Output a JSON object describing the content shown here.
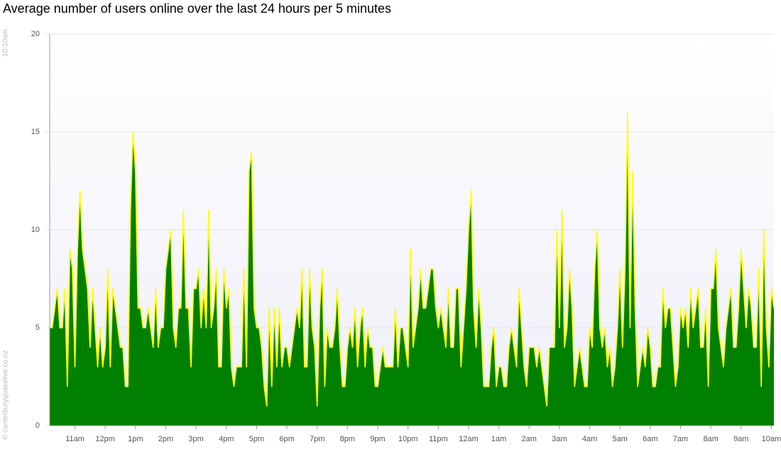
{
  "chart_data": {
    "type": "area",
    "title": "Average number of users online over the last 24 hours per 5 minutes",
    "start_label": "10:10am",
    "credit": "© canterburyquakelive.co.nz",
    "fill_color": "#008000",
    "line_color": "#ffff00",
    "grid": true,
    "ylim": [
      0,
      20
    ],
    "yticks": [
      0,
      5,
      10,
      15,
      20
    ],
    "xlim": [
      0,
      287
    ],
    "xticks": [
      {
        "value": 10,
        "label": "11am"
      },
      {
        "value": 22,
        "label": "12pm"
      },
      {
        "value": 34,
        "label": "1pm"
      },
      {
        "value": 46,
        "label": "2pm"
      },
      {
        "value": 58,
        "label": "3pm"
      },
      {
        "value": 70,
        "label": "4pm"
      },
      {
        "value": 82,
        "label": "5pm"
      },
      {
        "value": 94,
        "label": "6pm"
      },
      {
        "value": 106,
        "label": "7pm"
      },
      {
        "value": 118,
        "label": "8pm"
      },
      {
        "value": 130,
        "label": "9pm"
      },
      {
        "value": 142,
        "label": "10pm"
      },
      {
        "value": 154,
        "label": "11pm"
      },
      {
        "value": 166,
        "label": "12am"
      },
      {
        "value": 178,
        "label": "1am"
      },
      {
        "value": 190,
        "label": "2am"
      },
      {
        "value": 202,
        "label": "3am"
      },
      {
        "value": 214,
        "label": "4am"
      },
      {
        "value": 226,
        "label": "5am"
      },
      {
        "value": 238,
        "label": "6am"
      },
      {
        "value": 250,
        "label": "7am"
      },
      {
        "value": 262,
        "label": "8am"
      },
      {
        "value": 274,
        "label": "9am"
      },
      {
        "value": 286,
        "label": "10am"
      }
    ],
    "values": [
      5,
      5,
      6,
      7,
      5,
      5,
      7,
      2,
      9,
      8,
      3,
      9,
      12,
      9,
      8,
      7,
      4,
      7,
      5,
      3,
      5,
      3,
      4,
      8,
      3,
      7,
      6,
      5,
      4,
      4,
      2,
      2,
      11,
      15,
      13,
      6,
      6,
      5,
      5,
      6,
      5,
      4,
      7,
      4,
      5,
      5,
      8,
      9,
      10,
      5,
      4,
      6,
      6,
      11,
      6,
      6,
      3,
      7,
      7,
      8,
      5,
      7,
      5,
      11,
      5,
      6,
      8,
      3,
      3,
      8,
      6,
      7,
      3,
      2,
      3,
      3,
      3,
      8,
      3,
      13,
      14,
      6,
      5,
      5,
      4,
      2,
      1,
      6,
      2,
      6,
      3,
      6,
      3,
      4,
      4,
      3,
      4,
      5,
      6,
      5,
      8,
      3,
      3,
      8,
      5,
      4,
      1,
      6,
      8,
      2,
      5,
      4,
      4,
      5,
      7,
      4,
      2,
      2,
      4,
      5,
      4,
      6,
      3,
      5,
      6,
      3,
      5,
      4,
      4,
      2,
      2,
      3,
      4,
      3,
      3,
      3,
      3,
      6,
      3,
      5,
      5,
      4,
      3,
      9,
      4,
      5,
      6,
      8,
      6,
      6,
      7,
      8,
      8,
      6,
      5,
      6,
      5,
      4,
      7,
      4,
      4,
      7,
      7,
      3,
      5,
      7,
      10,
      12,
      6,
      4,
      7,
      5,
      2,
      2,
      2,
      4,
      5,
      2,
      3,
      3,
      2,
      2,
      4,
      5,
      4,
      3,
      7,
      5,
      3,
      2,
      4,
      4,
      4,
      3,
      4,
      3,
      2,
      1,
      4,
      4,
      4,
      10,
      5,
      11,
      4,
      5,
      8,
      6,
      2,
      3,
      4,
      3,
      2,
      2,
      5,
      4,
      8,
      10,
      5,
      4,
      5,
      3,
      4,
      2,
      3,
      5,
      8,
      4,
      8,
      16,
      5,
      13,
      6,
      2,
      3,
      4,
      3,
      5,
      4,
      2,
      2,
      3,
      3,
      7,
      5,
      6,
      6,
      4,
      2,
      3,
      6,
      5,
      6,
      4,
      7,
      5,
      6,
      7,
      4,
      4,
      6,
      2,
      7,
      7,
      9,
      5,
      4,
      3,
      5,
      6,
      7,
      4,
      4,
      6,
      9,
      7,
      5,
      7,
      6,
      4,
      4,
      8,
      2,
      10,
      5,
      3,
      7,
      6
    ]
  }
}
